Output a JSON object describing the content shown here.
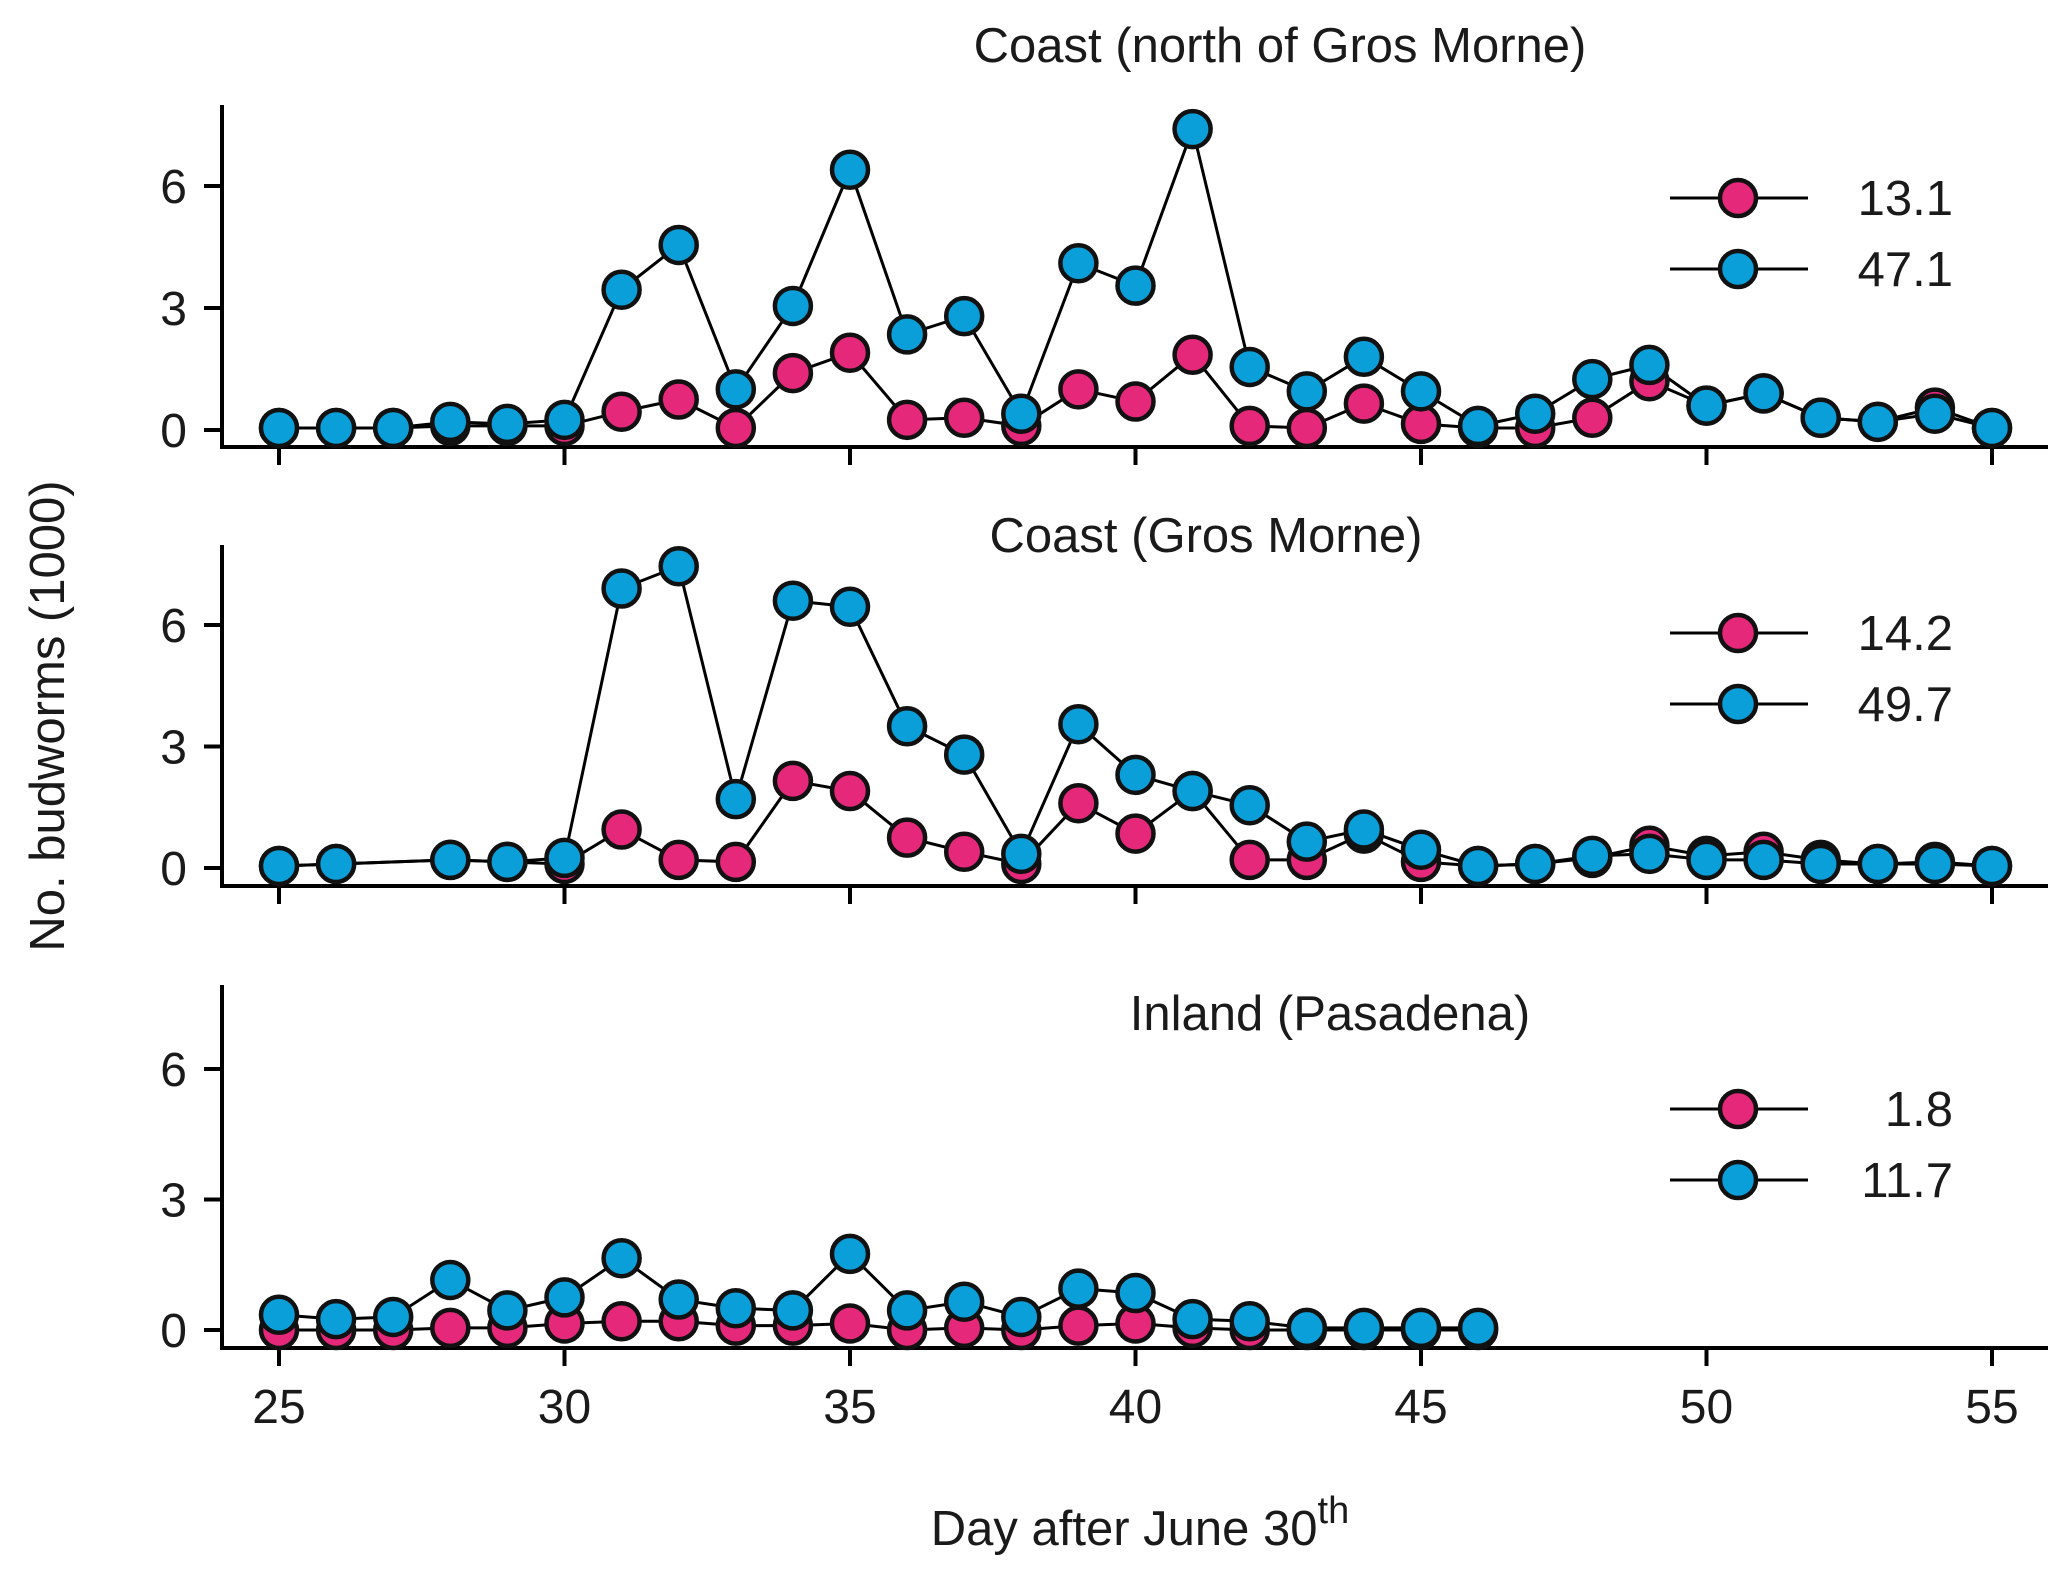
{
  "chart_data": [
    {
      "type": "line",
      "title": "Coast (north of Gros Morne)",
      "ylim": [
        0,
        7.5
      ],
      "yticks": [
        0,
        3,
        6
      ],
      "xlim": [
        24.3,
        56.2
      ],
      "legend_position": "right",
      "series": [
        {
          "name": "13.1",
          "color": "#e6287a",
          "x": [
            25,
            26,
            27,
            28,
            29,
            30,
            31,
            32,
            33,
            34,
            35,
            36,
            37,
            38,
            39,
            40,
            41,
            42,
            43,
            44,
            45,
            46,
            47,
            48,
            49,
            50,
            51,
            52,
            53,
            54,
            55
          ],
          "y": [
            0.05,
            0.05,
            0.05,
            0.1,
            0.1,
            0.1,
            0.45,
            0.75,
            0.05,
            1.4,
            1.9,
            0.25,
            0.3,
            0.1,
            1.0,
            0.7,
            1.85,
            0.1,
            0.05,
            0.65,
            0.15,
            0.05,
            0.05,
            0.3,
            1.2,
            0.6,
            0.9,
            0.3,
            0.2,
            0.55,
            0.05
          ]
        },
        {
          "name": "47.1",
          "color": "#0a9fd8",
          "x": [
            25,
            26,
            27,
            28,
            29,
            30,
            31,
            32,
            33,
            34,
            35,
            36,
            37,
            38,
            39,
            40,
            41,
            42,
            43,
            44,
            45,
            46,
            47,
            48,
            49,
            50,
            51,
            52,
            53,
            54,
            55
          ],
          "y": [
            0.05,
            0.05,
            0.05,
            0.2,
            0.15,
            0.25,
            3.45,
            4.55,
            1.0,
            3.05,
            6.4,
            2.35,
            2.8,
            0.4,
            4.1,
            3.55,
            7.4,
            1.55,
            0.95,
            1.8,
            0.95,
            0.1,
            0.4,
            1.25,
            1.6,
            0.6,
            0.9,
            0.3,
            0.2,
            0.4,
            0.05
          ]
        }
      ]
    },
    {
      "type": "line",
      "title": "Coast (Gros Morne)",
      "ylim": [
        0,
        7.5
      ],
      "yticks": [
        0,
        3,
        6
      ],
      "xlim": [
        24.3,
        56.2
      ],
      "legend_position": "right",
      "series": [
        {
          "name": "14.2",
          "color": "#e6287a",
          "x": [
            25,
            26,
            28,
            29,
            30,
            31,
            32,
            33,
            34,
            35,
            36,
            37,
            38,
            39,
            40,
            41,
            42,
            43,
            44,
            45,
            46,
            47,
            48,
            49,
            50,
            51,
            52,
            53,
            54,
            55
          ],
          "y": [
            0.05,
            0.1,
            0.2,
            0.15,
            0.1,
            0.95,
            0.2,
            0.15,
            2.15,
            1.9,
            0.75,
            0.4,
            0.1,
            1.6,
            0.85,
            1.9,
            0.2,
            0.2,
            0.85,
            0.15,
            0.05,
            0.1,
            0.25,
            0.55,
            0.3,
            0.4,
            0.2,
            0.1,
            0.15,
            0.05
          ]
        },
        {
          "name": "49.7",
          "color": "#0a9fd8",
          "x": [
            25,
            26,
            28,
            29,
            30,
            31,
            32,
            33,
            34,
            35,
            36,
            37,
            38,
            39,
            40,
            41,
            42,
            43,
            44,
            45,
            46,
            47,
            48,
            49,
            50,
            51,
            52,
            53,
            54,
            55
          ],
          "y": [
            0.05,
            0.1,
            0.2,
            0.15,
            0.25,
            6.9,
            7.45,
            1.7,
            6.6,
            6.45,
            3.5,
            2.8,
            0.35,
            3.55,
            2.3,
            1.9,
            1.55,
            0.65,
            0.95,
            0.45,
            0.05,
            0.1,
            0.3,
            0.35,
            0.2,
            0.2,
            0.1,
            0.1,
            0.1,
            0.05
          ]
        }
      ]
    },
    {
      "type": "line",
      "title": "Inland (Pasadena)",
      "ylim": [
        0,
        7.5
      ],
      "yticks": [
        0,
        3,
        6
      ],
      "xlim": [
        24.3,
        56.2
      ],
      "xticks": [
        25,
        30,
        35,
        40,
        45,
        50,
        55
      ],
      "xlabel": "Day after June 30",
      "xlabel_sup": "th",
      "ylabel": "No. budworms (1000)",
      "legend_position": "right",
      "series": [
        {
          "name": "1.8",
          "color": "#e6287a",
          "x": [
            25,
            26,
            27,
            28,
            29,
            30,
            31,
            32,
            33,
            34,
            35,
            36,
            37,
            38,
            39,
            40,
            41,
            42,
            43,
            44,
            45,
            46
          ],
          "y": [
            0.0,
            0.0,
            0.0,
            0.05,
            0.05,
            0.15,
            0.2,
            0.2,
            0.1,
            0.1,
            0.15,
            0.0,
            0.05,
            0.0,
            0.1,
            0.15,
            0.05,
            0.0,
            0.0,
            0.0,
            0.0,
            0.0
          ]
        },
        {
          "name": "11.7",
          "color": "#0a9fd8",
          "x": [
            25,
            26,
            27,
            28,
            29,
            30,
            31,
            32,
            33,
            34,
            35,
            36,
            37,
            38,
            39,
            40,
            41,
            42,
            43,
            44,
            45,
            46
          ],
          "y": [
            0.35,
            0.25,
            0.3,
            1.15,
            0.45,
            0.75,
            1.65,
            0.7,
            0.5,
            0.45,
            1.75,
            0.45,
            0.65,
            0.3,
            0.95,
            0.85,
            0.25,
            0.2,
            0.05,
            0.05,
            0.05,
            0.05
          ]
        }
      ]
    }
  ]
}
